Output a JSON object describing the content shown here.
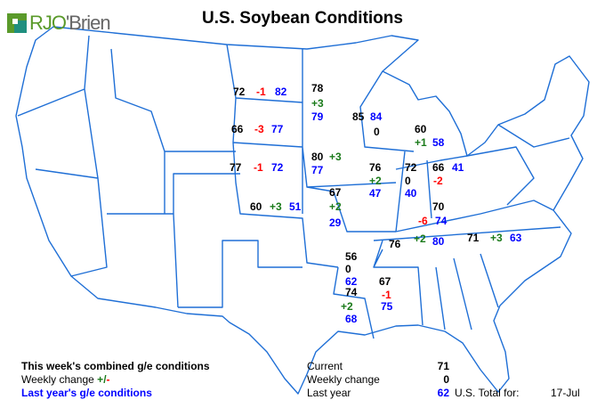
{
  "title": "U.S. Soybean Conditions",
  "logo": {
    "text": "RJO'Brien"
  },
  "colors": {
    "current": "#000000",
    "positive_change": "#1a7a1a",
    "negative_change": "#ff0000",
    "last_year": "#0000ff",
    "state_lines": "#1f6fd6"
  },
  "states": [
    {
      "state": "ND",
      "current": "72",
      "change": "-1",
      "last_year": "82"
    },
    {
      "state": "MN",
      "current": "78",
      "change": "+3",
      "last_year": "79"
    },
    {
      "state": "WI",
      "current": "85",
      "change": "0",
      "last_year": "84"
    },
    {
      "state": "MI",
      "current": "60",
      "change": "+1",
      "last_year": "58"
    },
    {
      "state": "SD",
      "current": "66",
      "change": "-3",
      "last_year": "77"
    },
    {
      "state": "NE",
      "current": "77",
      "change": "-1",
      "last_year": "72"
    },
    {
      "state": "IA",
      "current": "80",
      "change": "+3",
      "last_year": "77"
    },
    {
      "state": "IL",
      "current": "76",
      "change": "+2",
      "last_year": "47"
    },
    {
      "state": "IN",
      "current": "72",
      "change": "0",
      "last_year": "40"
    },
    {
      "state": "OH",
      "current": "66",
      "change": "-2",
      "last_year": "41"
    },
    {
      "state": "KS",
      "current": "60",
      "change": "+3",
      "last_year": "51"
    },
    {
      "state": "MO",
      "current": "67",
      "change": "+2",
      "last_year": "29"
    },
    {
      "state": "KY",
      "current": "70",
      "change": "-6",
      "last_year": "74"
    },
    {
      "state": "TN",
      "current": "76",
      "change": "+2",
      "last_year": "80"
    },
    {
      "state": "NC",
      "current": "71",
      "change": "+3",
      "last_year": "63"
    },
    {
      "state": "AR",
      "current": "56",
      "change": "0",
      "last_year": "62"
    },
    {
      "state": "MS",
      "current": "67",
      "change": "-1",
      "last_year": "75"
    },
    {
      "state": "LA",
      "current": "74",
      "change": "+2",
      "last_year": "68"
    }
  ],
  "legend": {
    "line1": "This week's combined g/e conditions",
    "line2": "Weekly change ",
    "line2_plus": "+",
    "line2_slash": "/",
    "line2_minus": "-",
    "line3": "Last year's g/e conditions"
  },
  "totals": {
    "current_label": "Current",
    "current_value": "71",
    "change_label": "Weekly change",
    "change_value": "0",
    "last_year_label": "Last year",
    "last_year_value": "62",
    "total_label": "U.S. Total for:",
    "date": "17-Jul"
  }
}
